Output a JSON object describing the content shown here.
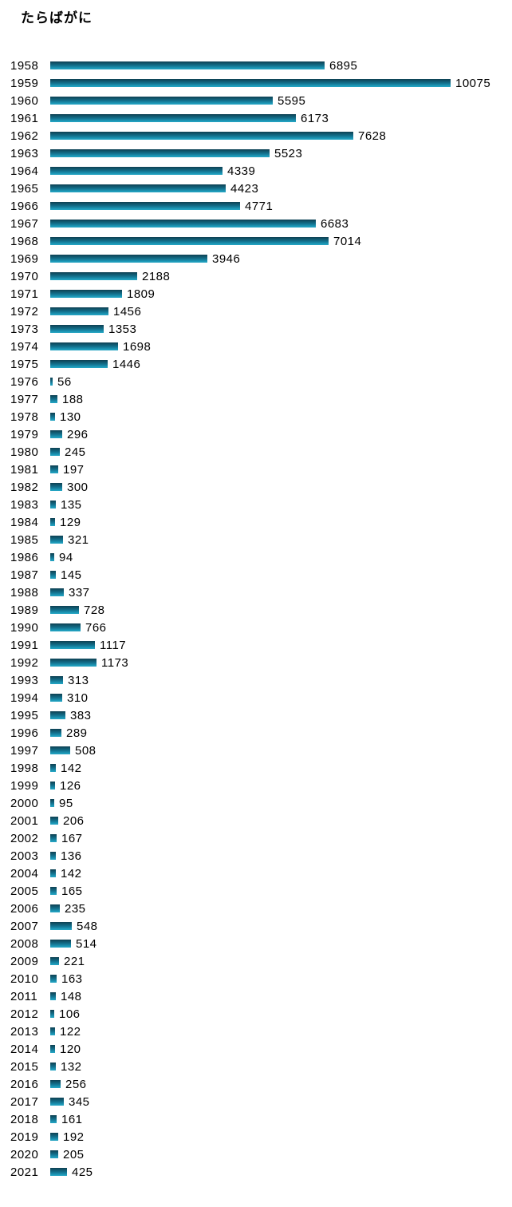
{
  "page": {
    "background": "#ffffff"
  },
  "chart_data": {
    "type": "bar",
    "orientation": "horizontal",
    "title": "たらばがに",
    "categories": [
      "1958",
      "1959",
      "1960",
      "1961",
      "1962",
      "1963",
      "1964",
      "1965",
      "1966",
      "1967",
      "1968",
      "1969",
      "1970",
      "1971",
      "1972",
      "1973",
      "1974",
      "1975",
      "1976",
      "1977",
      "1978",
      "1979",
      "1980",
      "1981",
      "1982",
      "1983",
      "1984",
      "1985",
      "1986",
      "1987",
      "1988",
      "1989",
      "1990",
      "1991",
      "1992",
      "1993",
      "1994",
      "1995",
      "1996",
      "1997",
      "1998",
      "1999",
      "2000",
      "2001",
      "2002",
      "2003",
      "2004",
      "2005",
      "2006",
      "2007",
      "2008",
      "2009",
      "2010",
      "2011",
      "2012",
      "2013",
      "2014",
      "2015",
      "2016",
      "2017",
      "2018",
      "2019",
      "2020",
      "2021"
    ],
    "values": [
      6895,
      10075,
      5595,
      6173,
      7628,
      5523,
      4339,
      4423,
      4771,
      6683,
      7014,
      3946,
      2188,
      1809,
      1456,
      1353,
      1698,
      1446,
      56,
      188,
      130,
      296,
      245,
      197,
      300,
      135,
      129,
      321,
      94,
      145,
      337,
      728,
      766,
      1117,
      1173,
      313,
      310,
      383,
      289,
      508,
      142,
      126,
      95,
      206,
      167,
      136,
      142,
      165,
      235,
      548,
      514,
      221,
      163,
      148,
      106,
      122,
      120,
      132,
      256,
      345,
      161,
      192,
      205,
      425
    ],
    "xlim": [
      0,
      10075
    ],
    "value_labels_shown": true,
    "grid": false,
    "legend": false,
    "bar_color_top": "#0e4052",
    "bar_color_bottom": "#27a5c2",
    "text_color": "#000000"
  }
}
